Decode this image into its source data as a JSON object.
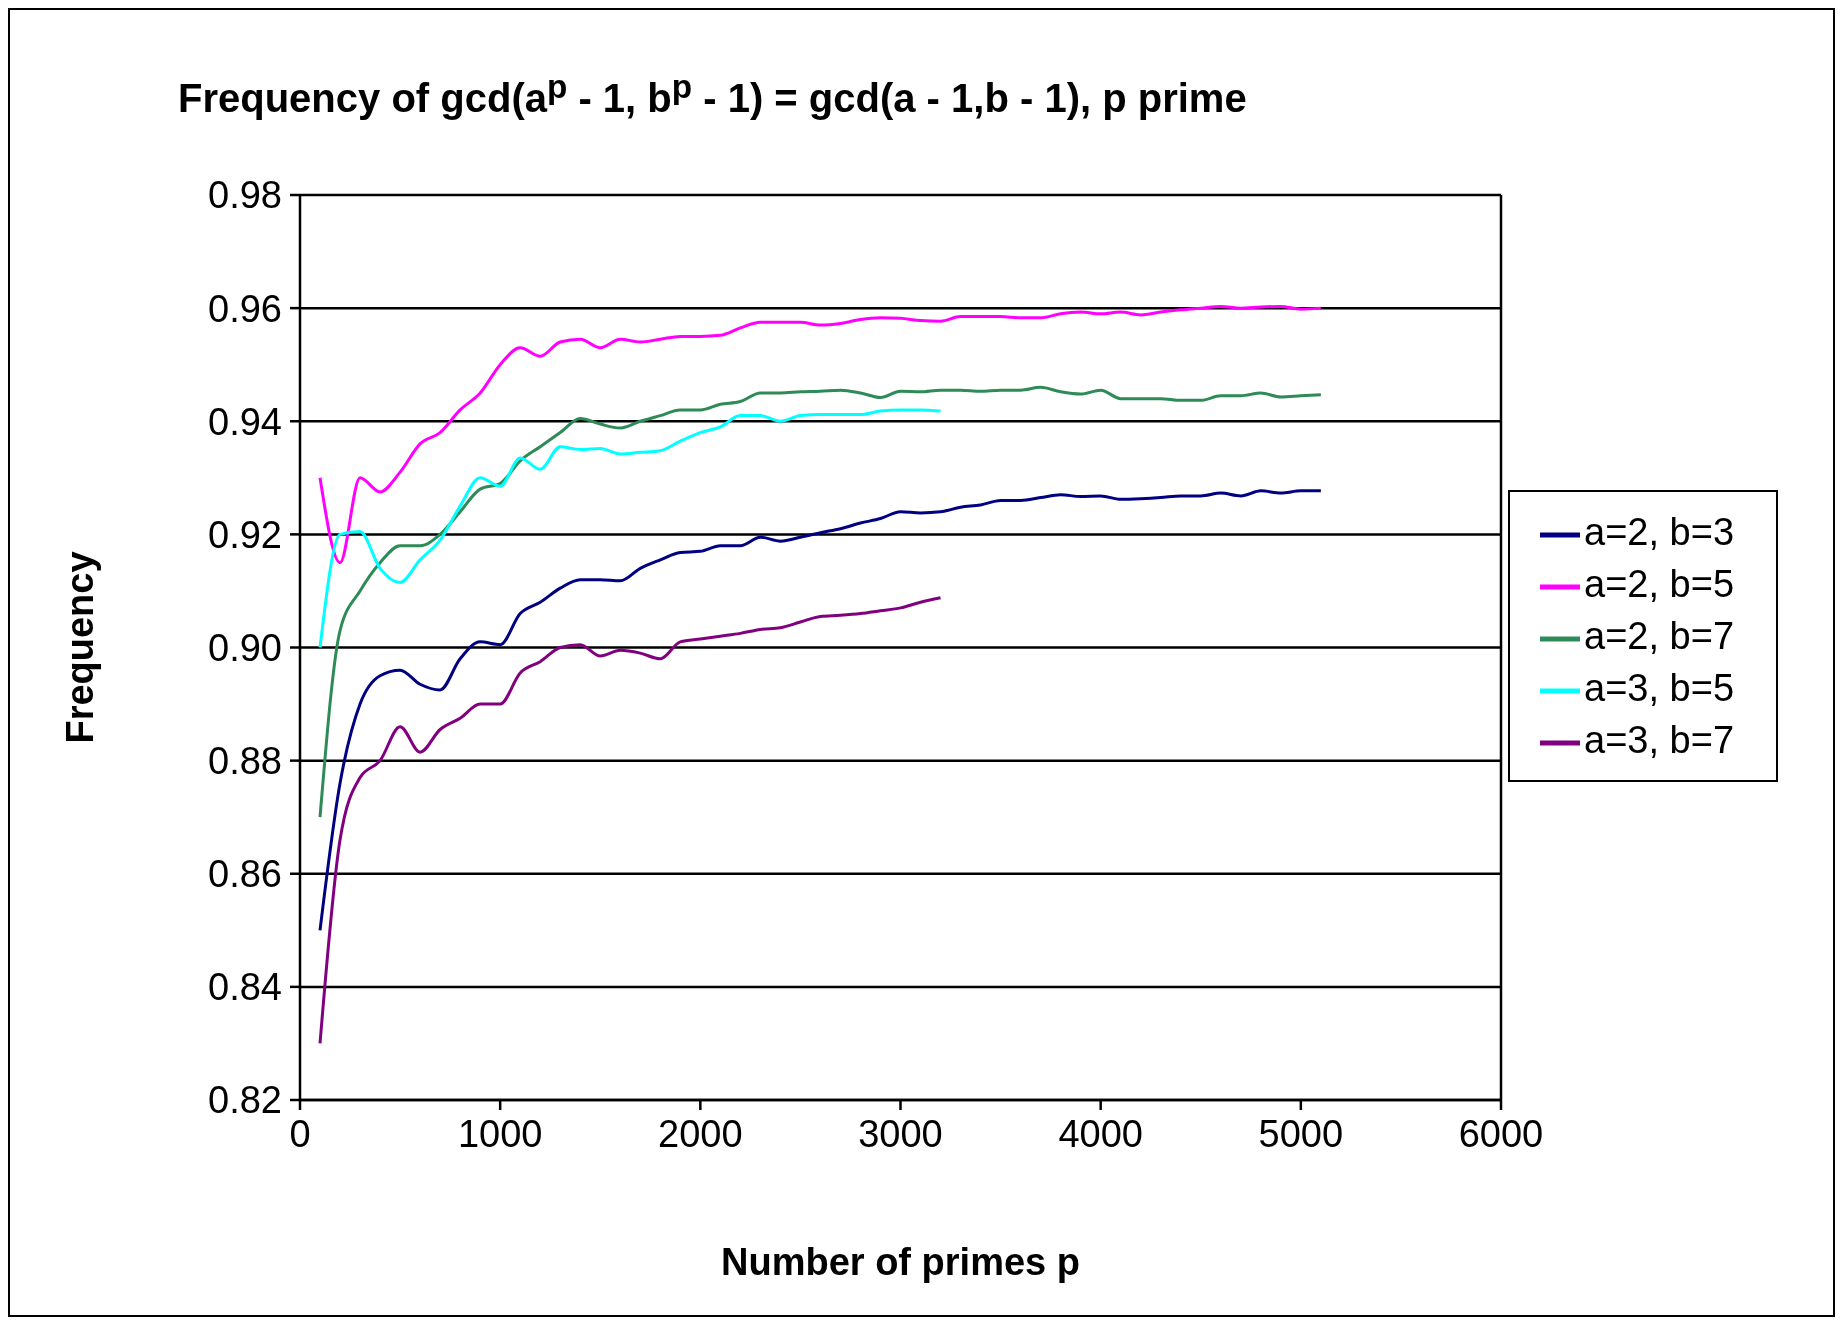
{
  "chart_data": {
    "type": "line",
    "title": "Frequency of gcd(a$^{p}$ - 1, b$^{p}$ - 1) = gcd(a - 1,b - 1), p prime",
    "xlabel": "Number of primes p",
    "ylabel": "Frequency",
    "x": [
      100,
      200,
      300,
      400,
      500,
      600,
      700,
      800,
      900,
      1000,
      1100,
      1200,
      1300,
      1400,
      1500,
      1600,
      1700,
      1800,
      1900,
      2000,
      2100,
      2200,
      2300,
      2400,
      2500,
      2600,
      2700,
      2800,
      2900,
      3000,
      3100,
      3200,
      3300,
      3400,
      3500,
      3600,
      3700,
      3800,
      3900,
      4000,
      4100,
      4200,
      4300,
      4400,
      4500,
      4600,
      4700,
      4800,
      4900,
      5000,
      5100
    ],
    "series": [
      {
        "name": "a=2, b=3",
        "color": "#000080",
        "values": [
          0.85,
          0.876,
          0.89,
          0.895,
          0.896,
          0.8935,
          0.8925,
          0.898,
          0.901,
          0.9005,
          0.906,
          0.908,
          0.9105,
          0.912,
          0.912,
          0.9118,
          0.914,
          0.9155,
          0.9168,
          0.917,
          0.918,
          0.918,
          0.9195,
          0.9188,
          0.9195,
          0.9203,
          0.921,
          0.922,
          0.9228,
          0.924,
          0.9238,
          0.924,
          0.9248,
          0.9252,
          0.926,
          0.926,
          0.9265,
          0.927,
          0.9267,
          0.9268,
          0.9262,
          0.9263,
          0.9265,
          0.9268,
          0.9268,
          0.9273,
          0.9268,
          0.9277,
          0.9273,
          0.9277,
          0.9277
        ]
      },
      {
        "name": "a=2, b=5",
        "color": "#ff00ff",
        "values": [
          0.93,
          0.915,
          0.93,
          0.9275,
          0.931,
          0.936,
          0.938,
          0.942,
          0.945,
          0.95,
          0.953,
          0.9515,
          0.954,
          0.9545,
          0.953,
          0.9545,
          0.954,
          0.9545,
          0.955,
          0.955,
          0.9552,
          0.9565,
          0.9575,
          0.9575,
          0.9575,
          0.957,
          0.9573,
          0.958,
          0.9583,
          0.9582,
          0.9578,
          0.9577,
          0.9585,
          0.9585,
          0.9585,
          0.9583,
          0.9583,
          0.959,
          0.9593,
          0.959,
          0.9593,
          0.9588,
          0.9593,
          0.9597,
          0.96,
          0.9603,
          0.96,
          0.9602,
          0.9603,
          0.9598,
          0.96
        ]
      },
      {
        "name": "a=2, b=7",
        "color": "#2e8b57",
        "values": [
          0.87,
          0.903,
          0.91,
          0.915,
          0.918,
          0.918,
          0.92,
          0.924,
          0.928,
          0.929,
          0.933,
          0.9355,
          0.938,
          0.9405,
          0.9395,
          0.9388,
          0.94,
          0.941,
          0.942,
          0.942,
          0.943,
          0.9435,
          0.945,
          0.945,
          0.9452,
          0.9453,
          0.9455,
          0.945,
          0.9442,
          0.9453,
          0.9452,
          0.9455,
          0.9455,
          0.9453,
          0.9455,
          0.9455,
          0.946,
          0.9452,
          0.9448,
          0.9455,
          0.944,
          0.944,
          0.944,
          0.9437,
          0.9437,
          0.9445,
          0.9445,
          0.945,
          0.9443,
          0.9445,
          0.9447
        ]
      },
      {
        "name": "a=3, b=5",
        "color": "#00ffff",
        "values": [
          0.9,
          0.92,
          0.9205,
          0.914,
          0.9115,
          0.9155,
          0.919,
          0.925,
          0.93,
          0.9285,
          0.9335,
          0.9315,
          0.9355,
          0.935,
          0.9352,
          0.9342,
          0.9345,
          0.9348,
          0.9365,
          0.938,
          0.939,
          0.941,
          0.941,
          0.94,
          0.941,
          0.9412,
          0.9412,
          0.9412,
          0.9418,
          0.942,
          0.942,
          0.9418,
          null,
          null,
          null,
          null,
          null,
          null,
          null,
          null,
          null,
          null,
          null,
          null,
          null,
          null,
          null,
          null,
          null,
          null,
          null
        ]
      },
      {
        "name": "a=3, b=7",
        "color": "#800080",
        "values": [
          0.83,
          0.866,
          0.877,
          0.88,
          0.886,
          0.8815,
          0.8855,
          0.8875,
          0.89,
          0.89,
          0.8955,
          0.8975,
          0.9,
          0.9005,
          0.8985,
          0.8995,
          0.899,
          0.898,
          0.901,
          0.9015,
          0.902,
          0.9025,
          0.9032,
          0.9035,
          0.9045,
          0.9055,
          0.9057,
          0.906,
          0.9065,
          0.907,
          0.908,
          0.9088,
          null,
          null,
          null,
          null,
          null,
          null,
          null,
          null,
          null,
          null,
          null,
          null,
          null,
          null,
          null,
          null,
          null,
          null,
          null
        ]
      }
    ],
    "xlim": [
      0,
      6000
    ],
    "xticks": [
      0,
      1000,
      2000,
      3000,
      4000,
      5000,
      6000
    ],
    "ylim": [
      0.82,
      0.98
    ],
    "yticks": [
      0.82,
      0.84,
      0.86,
      0.88,
      {
        "value": 0.9,
        "label": "0.90"
      },
      0.92,
      0.94,
      0.96,
      0.98
    ],
    "grid": "y",
    "legend": "right",
    "marker": "none",
    "line_style": "solid"
  }
}
